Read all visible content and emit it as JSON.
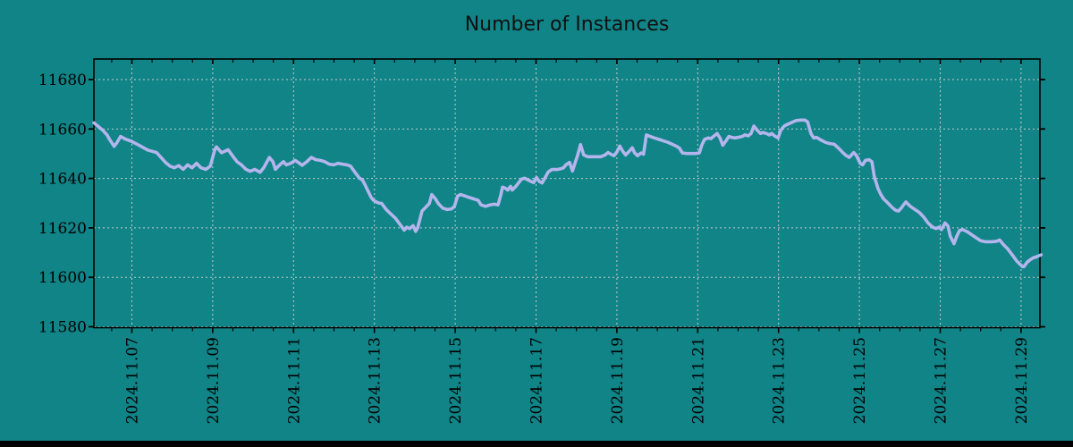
{
  "colors": {
    "background": "#108487",
    "line": "#b3b5ec",
    "grid": "#c6ccca",
    "axis": "#000000",
    "text": "#000000",
    "bottom_bar": "#000000"
  },
  "chart_data": {
    "type": "line",
    "title": "Number of Instances",
    "xlabel": "",
    "ylabel": "",
    "grid": true,
    "legend": "none",
    "x_tick_days": [
      7,
      9,
      11,
      13,
      15,
      17,
      19,
      21,
      23,
      25,
      27,
      29
    ],
    "x_tick_labels": [
      "2024.11.07",
      "2024.11.09",
      "2024.11.11",
      "2024.11.13",
      "2024.11.15",
      "2024.11.17",
      "2024.11.19",
      "2024.11.21",
      "2024.11.23",
      "2024.11.25",
      "2024.11.27",
      "2024.11.29"
    ],
    "x_minor_tick_step_days": 0.5,
    "xlim_days": [
      6.06,
      29.5
    ],
    "y_ticks": [
      11580,
      11600,
      11620,
      11640,
      11660,
      11680
    ],
    "ylim": [
      11579.7,
      11688.4
    ],
    "series": [
      {
        "name": "Number of Instances",
        "points": [
          [
            6.06,
            11662.5
          ],
          [
            6.17,
            11661
          ],
          [
            6.28,
            11659.5
          ],
          [
            6.39,
            11657.5
          ],
          [
            6.44,
            11656
          ],
          [
            6.56,
            11653
          ],
          [
            6.63,
            11654.5
          ],
          [
            6.72,
            11657
          ],
          [
            6.83,
            11656
          ],
          [
            6.99,
            11655
          ],
          [
            7.17,
            11653.5
          ],
          [
            7.39,
            11651.5
          ],
          [
            7.61,
            11650.5
          ],
          [
            7.83,
            11646.5
          ],
          [
            7.94,
            11645
          ],
          [
            8.05,
            11644.3
          ],
          [
            8.16,
            11645.2
          ],
          [
            8.27,
            11643.7
          ],
          [
            8.38,
            11645.5
          ],
          [
            8.49,
            11644.3
          ],
          [
            8.6,
            11646.1
          ],
          [
            8.71,
            11644.3
          ],
          [
            8.83,
            11643.7
          ],
          [
            8.94,
            11645
          ],
          [
            9.05,
            11651.6
          ],
          [
            9.09,
            11652.8
          ],
          [
            9.22,
            11650.4
          ],
          [
            9.38,
            11651.6
          ],
          [
            9.49,
            11649.2
          ],
          [
            9.6,
            11646.8
          ],
          [
            9.71,
            11645.5
          ],
          [
            9.82,
            11643.7
          ],
          [
            9.93,
            11642.9
          ],
          [
            10.04,
            11643.7
          ],
          [
            10.17,
            11642.5
          ],
          [
            10.26,
            11644.3
          ],
          [
            10.4,
            11648.5
          ],
          [
            10.49,
            11646.8
          ],
          [
            10.55,
            11643.7
          ],
          [
            10.66,
            11645.5
          ],
          [
            10.75,
            11646.8
          ],
          [
            10.82,
            11645.5
          ],
          [
            10.93,
            11646.1
          ],
          [
            11.04,
            11647.3
          ],
          [
            11.15,
            11646.1
          ],
          [
            11.21,
            11645.3
          ],
          [
            11.33,
            11646.8
          ],
          [
            11.44,
            11648.5
          ],
          [
            11.55,
            11647.6
          ],
          [
            11.66,
            11647.3
          ],
          [
            11.77,
            11646.8
          ],
          [
            11.88,
            11645.8
          ],
          [
            11.99,
            11645.5
          ],
          [
            12.1,
            11646.1
          ],
          [
            12.21,
            11645.8
          ],
          [
            12.32,
            11645.5
          ],
          [
            12.41,
            11645
          ],
          [
            12.52,
            11642.5
          ],
          [
            12.63,
            11640.1
          ],
          [
            12.7,
            11639.5
          ],
          [
            12.76,
            11637.7
          ],
          [
            12.85,
            11634.7
          ],
          [
            12.92,
            11632.3
          ],
          [
            12.98,
            11631.1
          ],
          [
            13.1,
            11630.1
          ],
          [
            13.18,
            11629.9
          ],
          [
            13.29,
            11627.5
          ],
          [
            13.4,
            11625.7
          ],
          [
            13.52,
            11623.9
          ],
          [
            13.63,
            11621.5
          ],
          [
            13.74,
            11619.1
          ],
          [
            13.8,
            11620.3
          ],
          [
            13.87,
            11619.7
          ],
          [
            13.96,
            11620.9
          ],
          [
            14.02,
            11618.6
          ],
          [
            14.07,
            11620
          ],
          [
            14.18,
            11626.8
          ],
          [
            14.25,
            11628
          ],
          [
            14.36,
            11629.9
          ],
          [
            14.42,
            11633.5
          ],
          [
            14.51,
            11631.7
          ],
          [
            14.58,
            11629.9
          ],
          [
            14.69,
            11628
          ],
          [
            14.8,
            11627.4
          ],
          [
            14.91,
            11627.7
          ],
          [
            14.98,
            11628.7
          ],
          [
            15.06,
            11632.9
          ],
          [
            15.13,
            11633.5
          ],
          [
            15.24,
            11632.9
          ],
          [
            15.35,
            11632.3
          ],
          [
            15.46,
            11631.7
          ],
          [
            15.57,
            11631.1
          ],
          [
            15.64,
            11629.3
          ],
          [
            15.75,
            11628.7
          ],
          [
            15.86,
            11629.3
          ],
          [
            15.97,
            11629.6
          ],
          [
            16.06,
            11629.3
          ],
          [
            16.13,
            11633.5
          ],
          [
            16.17,
            11636.5
          ],
          [
            16.24,
            11636.1
          ],
          [
            16.3,
            11635.3
          ],
          [
            16.37,
            11636.8
          ],
          [
            16.41,
            11635.3
          ],
          [
            16.5,
            11636.8
          ],
          [
            16.57,
            11638.3
          ],
          [
            16.64,
            11639.7
          ],
          [
            16.72,
            11640.1
          ],
          [
            16.79,
            11639.5
          ],
          [
            16.86,
            11638.9
          ],
          [
            16.94,
            11638.3
          ],
          [
            17.01,
            11640.4
          ],
          [
            17.08,
            11638.8
          ],
          [
            17.15,
            11638.2
          ],
          [
            17.23,
            11640.5
          ],
          [
            17.3,
            11642.6
          ],
          [
            17.39,
            11643.6
          ],
          [
            17.52,
            11643.6
          ],
          [
            17.61,
            11643.9
          ],
          [
            17.68,
            11644.3
          ],
          [
            17.74,
            11645.5
          ],
          [
            17.83,
            11646.5
          ],
          [
            17.9,
            11643
          ],
          [
            17.96,
            11646
          ],
          [
            18.03,
            11649.5
          ],
          [
            18.1,
            11653.7
          ],
          [
            18.18,
            11649.5
          ],
          [
            18.27,
            11648.8
          ],
          [
            18.45,
            11648.8
          ],
          [
            18.6,
            11648.8
          ],
          [
            18.71,
            11649.5
          ],
          [
            18.78,
            11650.5
          ],
          [
            18.85,
            11649.8
          ],
          [
            18.93,
            11649.2
          ],
          [
            19.0,
            11650.7
          ],
          [
            19.07,
            11653.1
          ],
          [
            19.15,
            11650.9
          ],
          [
            19.22,
            11649.5
          ],
          [
            19.29,
            11650.7
          ],
          [
            19.38,
            11652.4
          ],
          [
            19.44,
            11650.3
          ],
          [
            19.51,
            11649.2
          ],
          [
            19.6,
            11650.3
          ],
          [
            19.66,
            11649.8
          ],
          [
            19.73,
            11657.6
          ],
          [
            19.82,
            11657
          ],
          [
            19.93,
            11656.4
          ],
          [
            20.04,
            11655.8
          ],
          [
            20.15,
            11655.2
          ],
          [
            20.26,
            11654.6
          ],
          [
            20.37,
            11653.8
          ],
          [
            20.48,
            11653
          ],
          [
            20.55,
            11652.2
          ],
          [
            20.62,
            11650.3
          ],
          [
            20.73,
            11650.1
          ],
          [
            20.95,
            11650.1
          ],
          [
            21.04,
            11650.3
          ],
          [
            21.1,
            11653.4
          ],
          [
            21.17,
            11655.8
          ],
          [
            21.26,
            11656.4
          ],
          [
            21.33,
            11656.1
          ],
          [
            21.39,
            11657
          ],
          [
            21.48,
            11658.2
          ],
          [
            21.55,
            11656.4
          ],
          [
            21.62,
            11653.4
          ],
          [
            21.7,
            11655.2
          ],
          [
            21.77,
            11657
          ],
          [
            21.84,
            11656.6
          ],
          [
            21.92,
            11656.4
          ],
          [
            21.99,
            11656.6
          ],
          [
            22.1,
            11657
          ],
          [
            22.17,
            11657.6
          ],
          [
            22.25,
            11657.2
          ],
          [
            22.32,
            11658.2
          ],
          [
            22.39,
            11661.2
          ],
          [
            22.48,
            11659.4
          ],
          [
            22.55,
            11658.2
          ],
          [
            22.61,
            11658.6
          ],
          [
            22.7,
            11658.2
          ],
          [
            22.77,
            11657.6
          ],
          [
            22.83,
            11658.2
          ],
          [
            22.92,
            11657
          ],
          [
            22.99,
            11656.4
          ],
          [
            23.05,
            11659.4
          ],
          [
            23.14,
            11661.2
          ],
          [
            23.21,
            11661.8
          ],
          [
            23.32,
            11662.6
          ],
          [
            23.43,
            11663.4
          ],
          [
            23.54,
            11663.6
          ],
          [
            23.65,
            11663.6
          ],
          [
            23.72,
            11662.9
          ],
          [
            23.8,
            11658.2
          ],
          [
            23.87,
            11656.4
          ],
          [
            23.94,
            11656.6
          ],
          [
            24.02,
            11655.8
          ],
          [
            24.09,
            11655.2
          ],
          [
            24.16,
            11654.6
          ],
          [
            24.24,
            11654.2
          ],
          [
            24.31,
            11654
          ],
          [
            24.38,
            11653.8
          ],
          [
            24.49,
            11652.2
          ],
          [
            24.6,
            11650.3
          ],
          [
            24.68,
            11649.2
          ],
          [
            24.75,
            11648.5
          ],
          [
            24.82,
            11649.8
          ],
          [
            24.86,
            11650.5
          ],
          [
            24.93,
            11649.2
          ],
          [
            25.02,
            11646.1
          ],
          [
            25.08,
            11645.5
          ],
          [
            25.15,
            11647.3
          ],
          [
            25.24,
            11647.6
          ],
          [
            25.31,
            11646.8
          ],
          [
            25.37,
            11640.7
          ],
          [
            25.46,
            11635.9
          ],
          [
            25.53,
            11633.5
          ],
          [
            25.6,
            11631.7
          ],
          [
            25.68,
            11630.5
          ],
          [
            25.75,
            11629.3
          ],
          [
            25.82,
            11628.1
          ],
          [
            25.9,
            11627.1
          ],
          [
            25.97,
            11626.8
          ],
          [
            26.04,
            11628.1
          ],
          [
            26.12,
            11629.9
          ],
          [
            26.15,
            11630.5
          ],
          [
            26.26,
            11628.7
          ],
          [
            26.37,
            11627.5
          ],
          [
            26.48,
            11626.3
          ],
          [
            26.59,
            11624.4
          ],
          [
            26.7,
            11622
          ],
          [
            26.81,
            11620.3
          ],
          [
            26.9,
            11619.7
          ],
          [
            26.97,
            11620.3
          ],
          [
            27.03,
            11619.3
          ],
          [
            27.12,
            11622
          ],
          [
            27.19,
            11620.8
          ],
          [
            27.25,
            11616.6
          ],
          [
            27.34,
            11613.6
          ],
          [
            27.41,
            11616.6
          ],
          [
            27.48,
            11619
          ],
          [
            27.56,
            11619.3
          ],
          [
            27.67,
            11618.4
          ],
          [
            27.78,
            11617.2
          ],
          [
            27.89,
            11616
          ],
          [
            28.0,
            11614.8
          ],
          [
            28.11,
            11614.4
          ],
          [
            28.29,
            11614.4
          ],
          [
            28.4,
            11614.6
          ],
          [
            28.47,
            11615.1
          ],
          [
            28.56,
            11613.3
          ],
          [
            28.67,
            11611.5
          ],
          [
            28.78,
            11609.1
          ],
          [
            28.89,
            11606.7
          ],
          [
            28.96,
            11605.5
          ],
          [
            29.04,
            11604.3
          ],
          [
            29.07,
            11604.3
          ],
          [
            29.15,
            11606.1
          ],
          [
            29.22,
            11607
          ],
          [
            29.3,
            11607.9
          ],
          [
            29.37,
            11608.2
          ],
          [
            29.44,
            11608.7
          ],
          [
            29.5,
            11609.1
          ]
        ]
      }
    ]
  }
}
